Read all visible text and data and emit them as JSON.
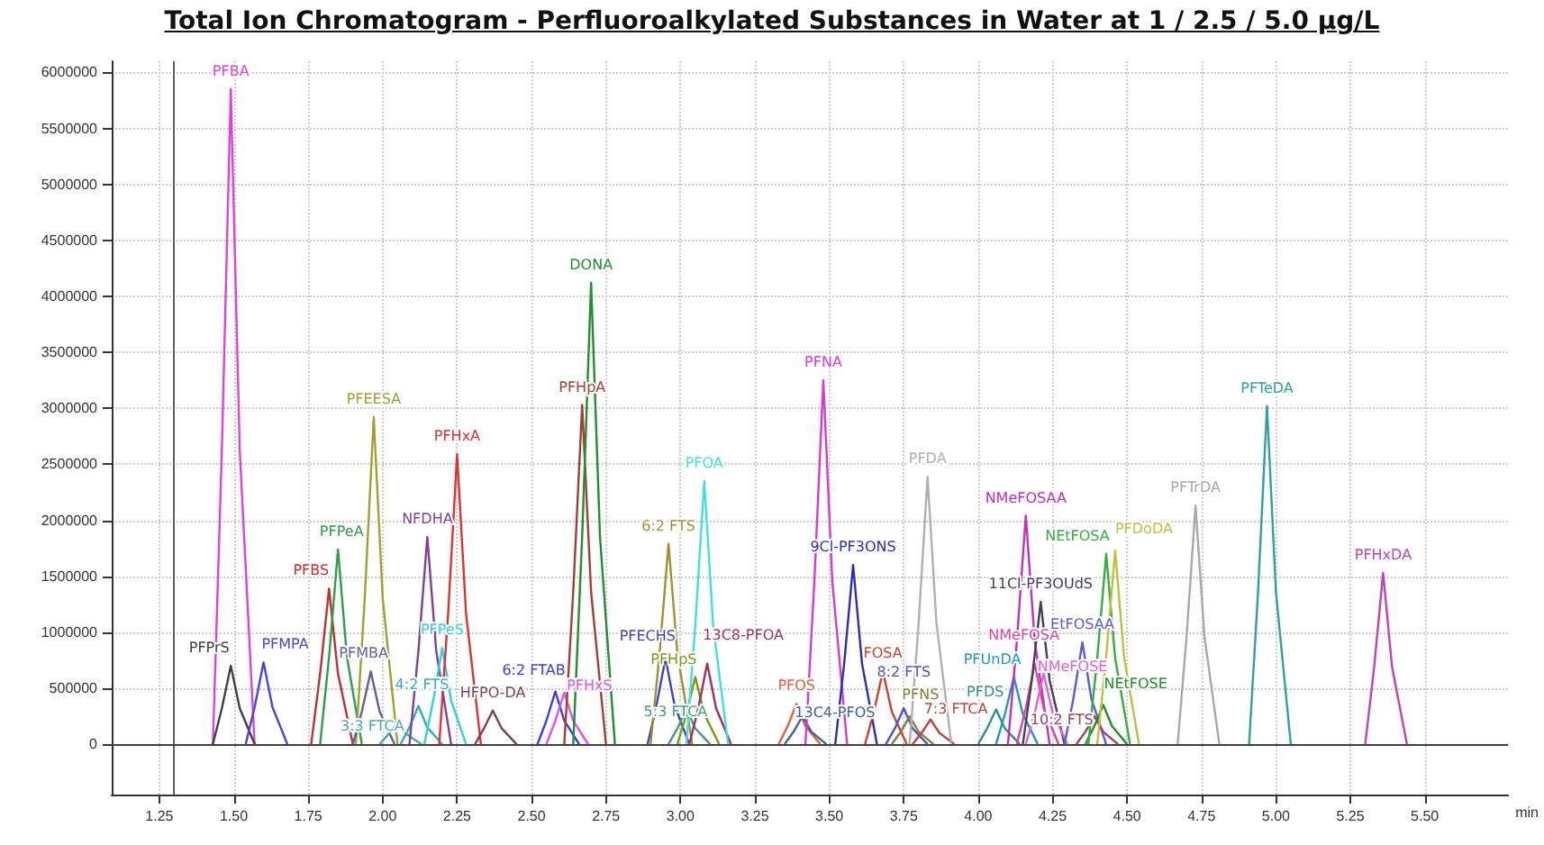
{
  "chart_data": {
    "type": "line",
    "title": "Total Ion Chromatogram - Perfluoroalkylated Substances in Water at 1 / 2.5 / 5.0 µg/L",
    "xlabel": "min",
    "xlim": [
      1.09,
      5.78
    ],
    "ylim": [
      -450000,
      6100000
    ],
    "xticks": [
      {
        "value": 1.25,
        "label": "1.25"
      },
      {
        "value": 1.5,
        "label": "1.50"
      },
      {
        "value": 1.75,
        "label": "1.75"
      },
      {
        "value": 2,
        "label": "2.00"
      },
      {
        "value": 2.25,
        "label": "2.25"
      },
      {
        "value": 2.5,
        "label": "2.50"
      },
      {
        "value": 2.75,
        "label": "2.75"
      },
      {
        "value": 3,
        "label": "3.00"
      },
      {
        "value": 3.25,
        "label": "3.25"
      },
      {
        "value": 3.5,
        "label": "3.50"
      },
      {
        "value": 3.75,
        "label": "3.75"
      },
      {
        "value": 4,
        "label": "4.00"
      },
      {
        "value": 4.25,
        "label": "4.25"
      },
      {
        "value": 4.5,
        "label": "4.50"
      },
      {
        "value": 4.75,
        "label": "4.75"
      },
      {
        "value": 5,
        "label": "5.00"
      },
      {
        "value": 5.25,
        "label": "5.25"
      },
      {
        "value": 5.5,
        "label": "5.50"
      }
    ],
    "yticks": [
      0,
      500000,
      1000000,
      1500000,
      2000000,
      2500000,
      3000000,
      3500000,
      4000000,
      4500000,
      5000000,
      5500000,
      6000000
    ],
    "grid": true,
    "legend": false,
    "marker": "none",
    "line_style": "solid",
    "ref_lines": [
      {
        "axis": "x",
        "value": 1.3,
        "label": null,
        "color": "#606060"
      },
      {
        "axis": "y",
        "value": 0,
        "label": null,
        "color": "#404040"
      }
    ],
    "series": [
      {
        "name": "PFBA",
        "color": "#e040e0",
        "x": [
          1.43,
          1.46,
          1.49,
          1.52,
          1.57
        ],
        "values": [
          0,
          2630000,
          5850000,
          2630000,
          0
        ]
      },
      {
        "name": "PFPrS",
        "color": "#404040",
        "x": [
          1.43,
          1.46,
          1.49,
          1.52,
          1.57
        ],
        "values": [
          0,
          320000,
          700000,
          320000,
          0
        ]
      },
      {
        "name": "PFMPA",
        "color": "#4646d6",
        "x": [
          1.54,
          1.57,
          1.6,
          1.63,
          1.68
        ],
        "values": [
          0,
          330000,
          730000,
          330000,
          0
        ]
      },
      {
        "name": "PFBS",
        "color": "#c03030",
        "x": [
          1.76,
          1.79,
          1.82,
          1.85,
          1.9
        ],
        "values": [
          0,
          630000,
          1390000,
          630000,
          0
        ]
      },
      {
        "name": "PFPeA",
        "color": "#2e9e48",
        "x": [
          1.79,
          1.82,
          1.85,
          1.88,
          1.93
        ],
        "values": [
          0,
          780000,
          1740000,
          780000,
          0
        ]
      },
      {
        "name": "PFEESA",
        "color": "#a0a030",
        "x": [
          1.91,
          1.94,
          1.97,
          2.0,
          2.05
        ],
        "values": [
          0,
          1310000,
          2920000,
          1310000,
          0
        ]
      },
      {
        "name": "PFMBA",
        "color": "#6060a0",
        "x": [
          1.9,
          1.93,
          1.96,
          1.99,
          2.04
        ],
        "values": [
          0,
          290000,
          650000,
          290000,
          0
        ]
      },
      {
        "name": "3:3 FTCA",
        "color": "#48a8a8",
        "x": [
          1.99,
          2.02,
          2.05,
          2.08,
          2.13
        ],
        "values": [
          0,
          90000,
          190000,
          90000,
          0
        ]
      },
      {
        "name": "4:2 FTS",
        "color": "#30b0b0",
        "x": [
          2.06,
          2.09,
          2.12,
          2.15,
          2.2
        ],
        "values": [
          0,
          150000,
          340000,
          150000,
          0
        ]
      },
      {
        "name": "NFDHA",
        "color": "#8040a0",
        "x": [
          2.09,
          2.12,
          2.15,
          2.18,
          2.23
        ],
        "values": [
          0,
          830000,
          1850000,
          830000,
          0
        ]
      },
      {
        "name": "PFPeS",
        "color": "#30d0e0",
        "x": [
          2.14,
          2.17,
          2.2,
          2.23,
          2.28
        ],
        "values": [
          0,
          390000,
          860000,
          390000,
          0
        ]
      },
      {
        "name": "PFHxA",
        "color": "#e03030",
        "x": [
          2.19,
          2.22,
          2.25,
          2.28,
          2.33
        ],
        "values": [
          0,
          1170000,
          2590000,
          1170000,
          0
        ]
      },
      {
        "name": "HFPO-DA",
        "color": "#804050",
        "x": [
          2.31,
          2.34,
          2.37,
          2.4,
          2.45
        ],
        "values": [
          0,
          140000,
          300000,
          140000,
          0
        ]
      },
      {
        "name": "6:2 FTAB",
        "color": "#3a3af0",
        "x": [
          2.52,
          2.55,
          2.58,
          2.61,
          2.66
        ],
        "values": [
          0,
          210000,
          470000,
          210000,
          0
        ]
      },
      {
        "name": "PFHxS",
        "color": "#e050f0",
        "x": [
          2.55,
          2.58,
          2.61,
          2.64,
          2.69
        ],
        "values": [
          0,
          210000,
          460000,
          210000,
          0
        ]
      },
      {
        "name": "PFHpA",
        "color": "#a04030",
        "x": [
          2.61,
          2.64,
          2.67,
          2.7,
          2.75
        ],
        "values": [
          0,
          1360000,
          3030000,
          1360000,
          0
        ]
      },
      {
        "name": "DONA",
        "color": "#1f8f2f",
        "x": [
          2.64,
          2.67,
          2.7,
          2.73,
          2.78
        ],
        "values": [
          0,
          1850000,
          4120000,
          1850000,
          0
        ]
      },
      {
        "name": "PFECHS",
        "color": "#4040c0",
        "x": [
          2.89,
          2.92,
          2.95,
          2.98,
          3.03
        ],
        "values": [
          0,
          350000,
          770000,
          350000,
          0
        ]
      },
      {
        "name": "6:2 FTS",
        "color": "#a09030",
        "x": [
          2.9,
          2.93,
          2.96,
          2.99,
          3.04
        ],
        "values": [
          0,
          810000,
          1790000,
          810000,
          0
        ]
      },
      {
        "name": "5:3 FTCA",
        "color": "#40a080",
        "x": [
          2.96,
          2.99,
          3.02,
          3.05,
          3.1
        ],
        "values": [
          0,
          140000,
          320000,
          140000,
          0
        ]
      },
      {
        "name": "PFHpS",
        "color": "#7a9a10",
        "x": [
          2.99,
          3.02,
          3.05,
          3.08,
          3.13
        ],
        "values": [
          0,
          270000,
          600000,
          270000,
          0
        ]
      },
      {
        "name": "13C8-PFOA",
        "color": "#a03060",
        "x": [
          3.03,
          3.06,
          3.09,
          3.12,
          3.17
        ],
        "values": [
          0,
          320000,
          720000,
          320000,
          0
        ]
      },
      {
        "name": "PFOA",
        "color": "#40e0e0",
        "x": [
          3.02,
          3.05,
          3.08,
          3.11,
          3.16
        ],
        "values": [
          0,
          1060000,
          2350000,
          1060000,
          0
        ]
      },
      {
        "name": "PFOS",
        "color": "#e06040",
        "x": [
          3.33,
          3.36,
          3.39,
          3.42,
          3.47
        ],
        "values": [
          0,
          160000,
          360000,
          160000,
          0
        ]
      },
      {
        "name": "13C4-PFOS",
        "color": "#4060a0",
        "x": [
          3.35,
          3.38,
          3.41,
          3.44,
          3.49
        ],
        "values": [
          0,
          110000,
          250000,
          110000,
          0
        ]
      },
      {
        "name": "PFNA",
        "color": "#d838d8",
        "x": [
          3.42,
          3.45,
          3.48,
          3.51,
          3.56
        ],
        "values": [
          0,
          1460000,
          3250000,
          1460000,
          0
        ]
      },
      {
        "name": "9Cl-PF3ONS",
        "color": "#2c2cb8",
        "x": [
          3.52,
          3.55,
          3.58,
          3.61,
          3.66
        ],
        "values": [
          0,
          720000,
          1600000,
          720000,
          0
        ]
      },
      {
        "name": "FOSA",
        "color": "#d04030",
        "x": [
          3.62,
          3.65,
          3.68,
          3.71,
          3.76
        ],
        "values": [
          0,
          290000,
          650000,
          290000,
          0
        ]
      },
      {
        "name": "8:2 FTS",
        "color": "#5050c8",
        "x": [
          3.69,
          3.72,
          3.75,
          3.78,
          3.83
        ],
        "values": [
          0,
          140000,
          320000,
          140000,
          0
        ]
      },
      {
        "name": "PFNS",
        "color": "#808030",
        "x": [
          3.71,
          3.74,
          3.77,
          3.8,
          3.85
        ],
        "values": [
          0,
          110000,
          250000,
          110000,
          0
        ]
      },
      {
        "name": "7:3 FTCA",
        "color": "#c04040",
        "x": [
          3.78,
          3.81,
          3.84,
          3.87,
          3.92
        ],
        "values": [
          0,
          100000,
          220000,
          100000,
          0
        ]
      },
      {
        "name": "PFDA",
        "color": "#b0b0b0",
        "x": [
          3.77,
          3.8,
          3.83,
          3.86,
          3.91
        ],
        "values": [
          0,
          1080000,
          2390000,
          1080000,
          0
        ]
      },
      {
        "name": "PFDS",
        "color": "#2f9090",
        "x": [
          4.0,
          4.03,
          4.06,
          4.09,
          4.14
        ],
        "values": [
          0,
          140000,
          310000,
          140000,
          0
        ]
      },
      {
        "name": "PFUnDA",
        "color": "#1a9ac0",
        "x": [
          4.06,
          4.09,
          4.12,
          4.15,
          4.2
        ],
        "values": [
          0,
          270000,
          600000,
          270000,
          0
        ]
      },
      {
        "name": "NMeFOSAA",
        "color": "#c030c0",
        "x": [
          4.1,
          4.13,
          4.16,
          4.19,
          4.24
        ],
        "values": [
          0,
          920000,
          2040000,
          920000,
          0
        ]
      },
      {
        "name": "NMeFOSA",
        "color": "#e040a0",
        "x": [
          4.13,
          4.16,
          4.19,
          4.22,
          4.27
        ],
        "values": [
          0,
          320000,
          720000,
          320000,
          0
        ]
      },
      {
        "name": "11Cl-PF3OUdS",
        "color": "#404060",
        "x": [
          4.15,
          4.18,
          4.21,
          4.24,
          4.29
        ],
        "values": [
          0,
          570000,
          1270000,
          570000,
          0
        ]
      },
      {
        "name": "NMeFOSE",
        "color": "#e060e0",
        "x": [
          4.16,
          4.19,
          4.22,
          4.25,
          4.3
        ],
        "values": [
          0,
          280000,
          630000,
          280000,
          0
        ]
      },
      {
        "name": "EtFOSAA",
        "color": "#5a5ae0",
        "x": [
          4.29,
          4.32,
          4.35,
          4.38,
          4.43
        ],
        "values": [
          0,
          410000,
          910000,
          410000,
          0
        ]
      },
      {
        "name": "10:2 FTS",
        "color": "#a04060",
        "x": [
          4.33,
          4.36,
          4.39,
          4.42,
          4.47
        ],
        "values": [
          0,
          110000,
          250000,
          110000,
          0
        ]
      },
      {
        "name": "NEtFOSE",
        "color": "#209020",
        "x": [
          4.36,
          4.39,
          4.42,
          4.45,
          4.5
        ],
        "values": [
          0,
          160000,
          350000,
          160000,
          0
        ]
      },
      {
        "name": "NEtFOSA",
        "color": "#30b040",
        "x": [
          4.37,
          4.4,
          4.43,
          4.46,
          4.51
        ],
        "values": [
          0,
          770000,
          1700000,
          770000,
          0
        ]
      },
      {
        "name": "PFDoDA",
        "color": "#c0c040",
        "x": [
          4.4,
          4.43,
          4.46,
          4.49,
          4.54
        ],
        "values": [
          0,
          780000,
          1730000,
          780000,
          0
        ]
      },
      {
        "name": "PFTrDA",
        "color": "#a8a8a8",
        "x": [
          4.67,
          4.7,
          4.73,
          4.76,
          4.81
        ],
        "values": [
          0,
          960000,
          2130000,
          960000,
          0
        ]
      },
      {
        "name": "PFTeDA",
        "color": "#30a0a0",
        "x": [
          4.91,
          4.94,
          4.97,
          5.0,
          5.05
        ],
        "values": [
          0,
          1360000,
          3020000,
          1360000,
          0
        ]
      },
      {
        "name": "PFHxDA",
        "color": "#c040c0",
        "x": [
          5.3,
          5.33,
          5.36,
          5.39,
          5.44
        ],
        "values": [
          0,
          690000,
          1530000,
          690000,
          0
        ]
      }
    ]
  }
}
